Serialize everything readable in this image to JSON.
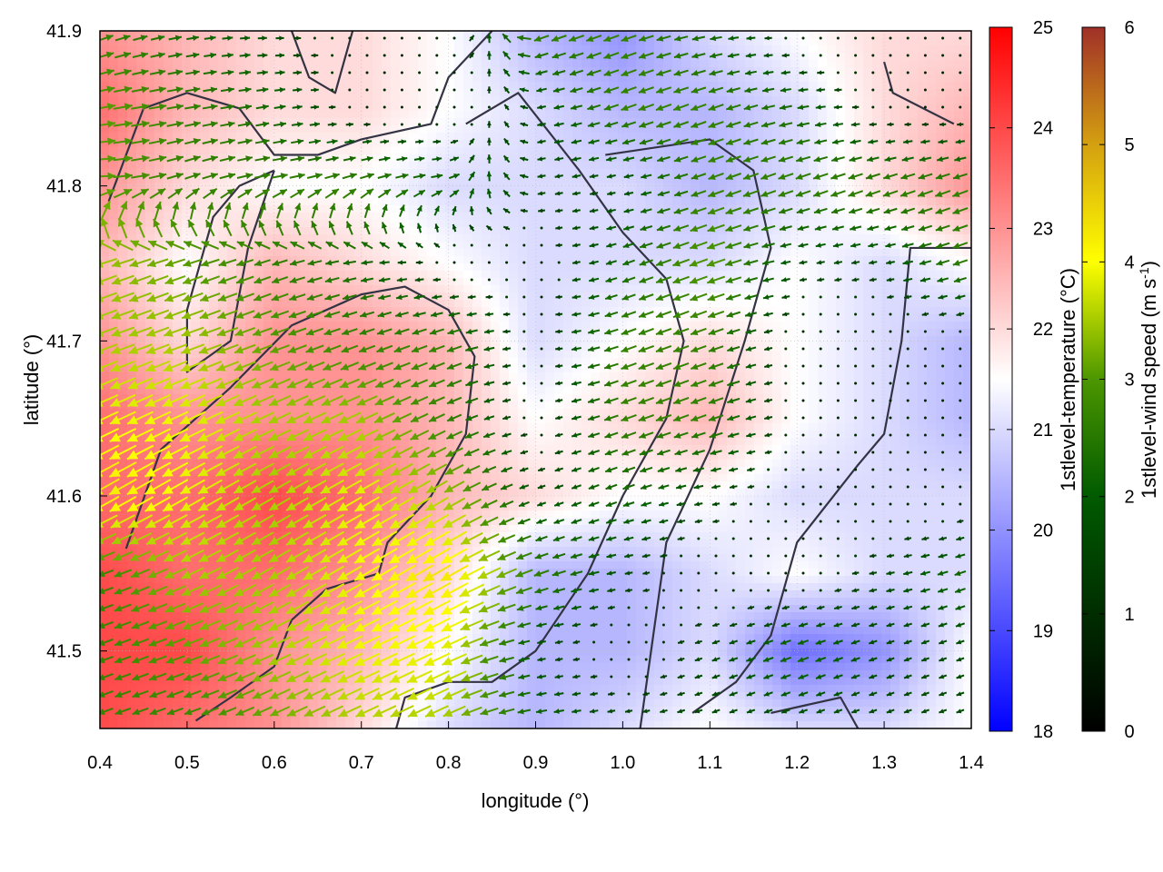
{
  "chart_data": {
    "type": "heatmap",
    "subtype": "map with temperature field, wind vectors and contour lines",
    "xlabel": "longitude (°)",
    "ylabel": "latitude (°)",
    "xlim": [
      0.4,
      1.4
    ],
    "ylim": [
      41.45,
      41.9
    ],
    "xticks": [
      "0.4",
      "0.5",
      "0.6",
      "0.7",
      "0.8",
      "0.9",
      "1.0",
      "1.1",
      "1.2",
      "1.3",
      "1.4"
    ],
    "yticks": [
      "41.5",
      "41.6",
      "41.7",
      "41.8",
      "41.9"
    ],
    "grid": true,
    "grid_lon": [
      0.4,
      0.5,
      0.6,
      0.7,
      0.8,
      0.9,
      1.0,
      1.1,
      1.2,
      1.3,
      1.4
    ],
    "grid_lat": [
      41.9,
      41.85,
      41.8,
      41.75,
      41.7,
      41.65,
      41.6,
      41.55,
      41.5,
      41.45
    ],
    "temperature": {
      "label": "1stlevel-temperature (°C)",
      "range": [
        18,
        25
      ],
      "ticks": [
        "18",
        "19",
        "20",
        "21",
        "22",
        "23",
        "24",
        "25"
      ],
      "colormap": [
        "#0000ff",
        "#ffffff",
        "#ff0000"
      ],
      "values": [
        [
          23,
          22.5,
          22,
          22,
          21.5,
          20.5,
          20,
          21,
          21.5,
          22,
          22
        ],
        [
          23.5,
          22.5,
          22,
          22,
          21.5,
          21,
          20.5,
          20.5,
          21,
          22,
          22.5
        ],
        [
          23,
          22,
          21.5,
          21.5,
          21,
          21,
          21,
          20.5,
          21,
          22,
          23
        ],
        [
          22.5,
          21.5,
          22.5,
          22,
          21.5,
          21,
          21,
          21,
          21.5,
          21,
          21.5
        ],
        [
          23,
          22,
          23,
          23,
          22.5,
          21,
          21.5,
          22,
          21.5,
          21,
          20.5
        ],
        [
          23.5,
          23,
          23,
          23,
          22.5,
          21.5,
          22,
          22.5,
          21.5,
          21,
          20.5
        ],
        [
          23.5,
          23.5,
          24,
          23.5,
          22.5,
          22,
          21.5,
          21.5,
          21,
          21,
          21
        ],
        [
          24,
          23.5,
          23.5,
          23,
          22,
          20.5,
          20.5,
          21,
          21.5,
          21,
          21
        ],
        [
          24,
          24,
          23,
          22.5,
          21.5,
          20.5,
          20.5,
          21,
          19.5,
          20,
          21.5
        ],
        [
          24,
          23.5,
          23,
          22,
          21,
          20.5,
          21,
          21.5,
          21,
          21,
          21.5
        ]
      ]
    },
    "wind_speed": {
      "label_main": "1stlevel-wind speed (m s",
      "label_sup": "-1",
      "label_end": ")",
      "range": [
        0,
        6
      ],
      "ticks": [
        "0",
        "1",
        "2",
        "3",
        "4",
        "5",
        "6"
      ],
      "colormap": [
        "#000000",
        "#005a00",
        "#4c9600",
        "#ffff00",
        "#d4a010",
        "#a03028"
      ],
      "values": [
        [
          2,
          1.5,
          1,
          0.5,
          0.5,
          2,
          2,
          1.5,
          0.5,
          0.5,
          0.5
        ],
        [
          2.5,
          2,
          1.5,
          0.5,
          0.5,
          1,
          2,
          2,
          1.5,
          0.5,
          0.5
        ],
        [
          2.5,
          2,
          2,
          2,
          1.5,
          1,
          1,
          2,
          2,
          2,
          2
        ],
        [
          3,
          2.5,
          2,
          1.5,
          0.5,
          0.5,
          1.5,
          2.5,
          1,
          1,
          2
        ],
        [
          3,
          3,
          2.5,
          2,
          2,
          0.5,
          2,
          2,
          0.5,
          0.5,
          0.5
        ],
        [
          3.5,
          3.5,
          3,
          3,
          2,
          0.5,
          2,
          2,
          0.5,
          0.5,
          0.5
        ],
        [
          4,
          3.5,
          3,
          3.5,
          3,
          1,
          1.5,
          1,
          0.5,
          0.5,
          0.5
        ],
        [
          2,
          3,
          3,
          3.5,
          4,
          2,
          1,
          0.5,
          0.5,
          1,
          1.5
        ],
        [
          2,
          2.5,
          3,
          3.5,
          3.5,
          1,
          0.5,
          1,
          1.5,
          1,
          1
        ],
        [
          2,
          2,
          2.5,
          3,
          3,
          1.5,
          1,
          1,
          1,
          1,
          1
        ]
      ],
      "direction_to_deg": [
        [
          20,
          10,
          0,
          0,
          0,
          200,
          200,
          190,
          180,
          180,
          180
        ],
        [
          10,
          10,
          10,
          0,
          0,
          190,
          200,
          200,
          190,
          180,
          180
        ],
        [
          0,
          20,
          10,
          20,
          10,
          190,
          190,
          200,
          200,
          200,
          200
        ],
        [
          200,
          200,
          200,
          190,
          180,
          180,
          200,
          200,
          190,
          190,
          200
        ],
        [
          200,
          200,
          200,
          200,
          200,
          180,
          200,
          200,
          190,
          190,
          190
        ],
        [
          205,
          205,
          205,
          205,
          205,
          190,
          200,
          200,
          190,
          190,
          190
        ],
        [
          210,
          210,
          210,
          210,
          210,
          200,
          200,
          190,
          190,
          190,
          190
        ],
        [
          200,
          205,
          210,
          210,
          210,
          200,
          190,
          190,
          190,
          190,
          200
        ],
        [
          200,
          200,
          205,
          205,
          205,
          190,
          190,
          200,
          200,
          200,
          200
        ],
        [
          200,
          200,
          205,
          205,
          205,
          190,
          190,
          200,
          200,
          200,
          200
        ]
      ]
    },
    "contours": [
      [
        [
          0.43,
          41.566
        ],
        [
          0.47,
          41.63
        ],
        [
          0.55,
          41.67
        ],
        [
          0.62,
          41.71
        ],
        [
          0.7,
          41.73
        ],
        [
          0.75,
          41.735
        ],
        [
          0.8,
          41.72
        ],
        [
          0.83,
          41.69
        ],
        [
          0.82,
          41.64
        ],
        [
          0.78,
          41.6
        ],
        [
          0.73,
          41.57
        ],
        [
          0.72,
          41.55
        ],
        [
          0.66,
          41.54
        ],
        [
          0.62,
          41.52
        ],
        [
          0.6,
          41.49
        ],
        [
          0.55,
          41.47
        ],
        [
          0.51,
          41.455
        ]
      ],
      [
        [
          0.41,
          41.79
        ],
        [
          0.45,
          41.85
        ],
        [
          0.5,
          41.86
        ],
        [
          0.56,
          41.85
        ],
        [
          0.6,
          41.82
        ],
        [
          0.65,
          41.82
        ],
        [
          0.7,
          41.83
        ],
        [
          0.78,
          41.84
        ],
        [
          0.8,
          41.87
        ],
        [
          0.85,
          41.9
        ]
      ],
      [
        [
          0.82,
          41.84
        ],
        [
          0.88,
          41.86
        ],
        [
          0.95,
          41.81
        ],
        [
          1.0,
          41.77
        ],
        [
          1.05,
          41.74
        ],
        [
          1.07,
          41.7
        ],
        [
          1.05,
          41.65
        ],
        [
          1.0,
          41.6
        ],
        [
          0.96,
          41.55
        ],
        [
          0.9,
          41.5
        ],
        [
          0.85,
          41.48
        ],
        [
          0.8,
          41.48
        ],
        [
          0.75,
          41.47
        ],
        [
          0.74,
          41.45
        ]
      ],
      [
        [
          0.98,
          41.82
        ],
        [
          1.1,
          41.83
        ],
        [
          1.15,
          41.81
        ],
        [
          1.17,
          41.76
        ],
        [
          1.14,
          41.7
        ],
        [
          1.1,
          41.63
        ],
        [
          1.05,
          41.57
        ],
        [
          1.02,
          41.45
        ]
      ],
      [
        [
          1.4,
          41.76
        ],
        [
          1.33,
          41.76
        ],
        [
          1.32,
          41.7
        ],
        [
          1.3,
          41.64
        ],
        [
          1.27,
          41.62
        ],
        [
          1.2,
          41.57
        ],
        [
          1.17,
          41.51
        ],
        [
          1.13,
          41.48
        ],
        [
          1.08,
          41.46
        ]
      ],
      [
        [
          1.17,
          41.46
        ],
        [
          1.25,
          41.47
        ],
        [
          1.27,
          41.45
        ]
      ],
      [
        [
          0.6,
          41.81
        ],
        [
          0.56,
          41.8
        ],
        [
          0.53,
          41.78
        ],
        [
          0.5,
          41.72
        ],
        [
          0.5,
          41.68
        ],
        [
          0.55,
          41.7
        ],
        [
          0.57,
          41.76
        ],
        [
          0.6,
          41.81
        ]
      ],
      [
        [
          1.3,
          41.88
        ],
        [
          1.31,
          41.86
        ],
        [
          1.38,
          41.84
        ]
      ],
      [
        [
          0.62,
          41.9
        ],
        [
          0.64,
          41.87
        ],
        [
          0.67,
          41.86
        ],
        [
          0.69,
          41.9
        ]
      ]
    ]
  }
}
